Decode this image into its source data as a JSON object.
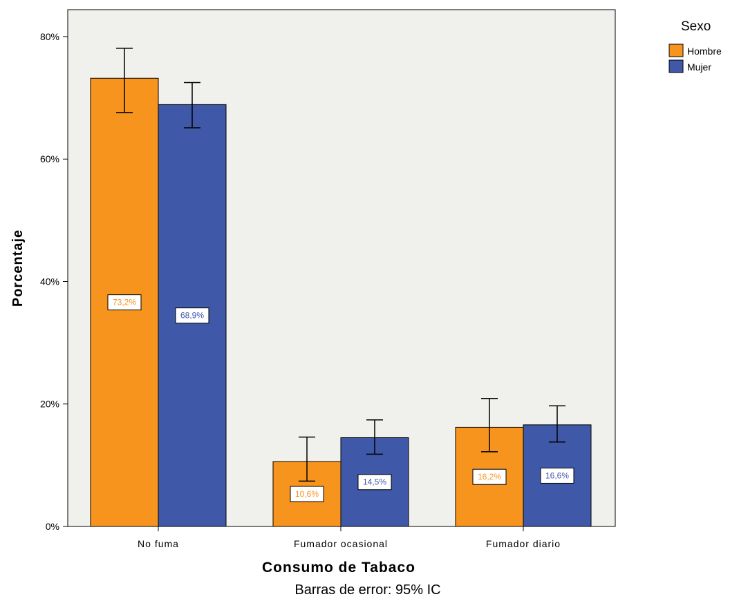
{
  "chart_data": {
    "type": "bar",
    "categories": [
      "No fuma",
      "Fumador ocasional",
      "Fumador diario"
    ],
    "series": [
      {
        "name": "Hombre",
        "color": "#f7941d",
        "values": [
          73.2,
          10.6,
          16.2
        ],
        "ci_low": [
          67.6,
          7.4,
          12.2
        ],
        "ci_high": [
          78.1,
          14.6,
          20.9
        ],
        "labels": [
          "73,2%",
          "10,6%",
          "16,2%"
        ]
      },
      {
        "name": "Mujer",
        "color": "#3f58a8",
        "values": [
          68.9,
          14.5,
          16.6
        ],
        "ci_low": [
          65.1,
          11.8,
          13.8
        ],
        "ci_high": [
          72.5,
          17.4,
          19.7
        ],
        "labels": [
          "68,9%",
          "14,5%",
          "16,6%"
        ]
      }
    ],
    "yticks": [
      0,
      20,
      40,
      60,
      80
    ],
    "ytick_labels": [
      "0%",
      "20%",
      "40%",
      "60%",
      "80%"
    ],
    "ylim": [
      0,
      84.4
    ],
    "xlabel": "Consumo de Tabaco",
    "ylabel": "Porcentaje",
    "legend_title": "Sexo",
    "legend_position": "top-right",
    "footnote": "Barras de error: 95% IC",
    "plot_background": "#f0f0ed",
    "grid": false
  }
}
